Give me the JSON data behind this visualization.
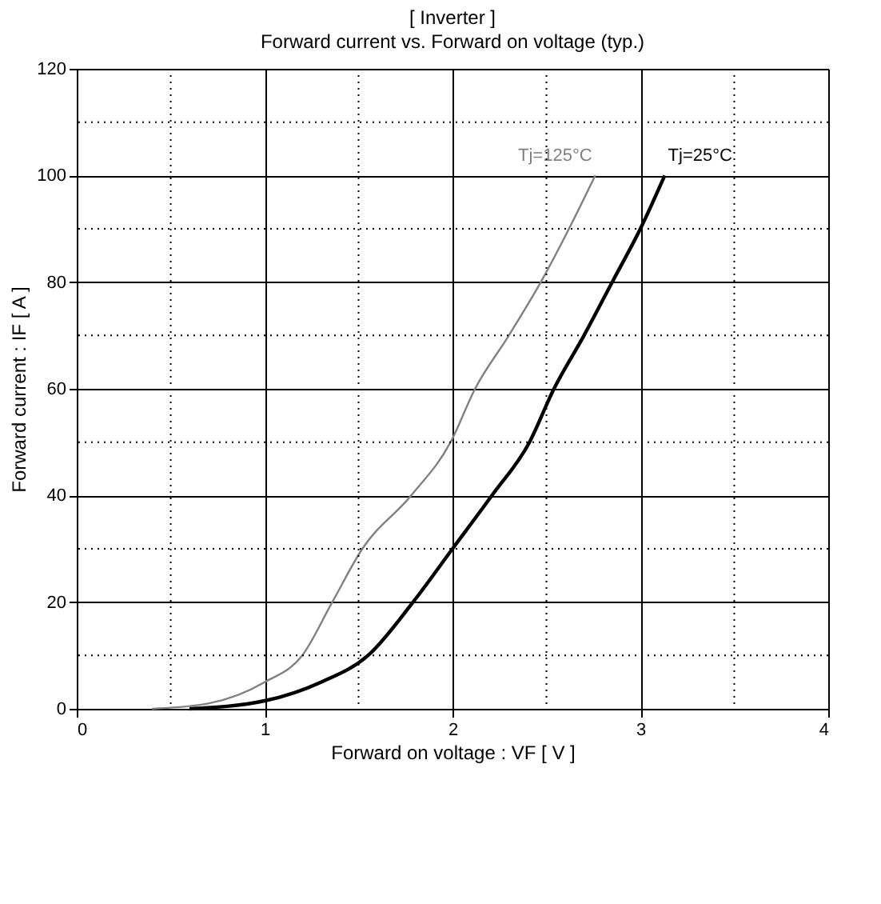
{
  "chart_data": {
    "type": "line",
    "title": "[ Inverter ]",
    "subtitle": "Forward current  vs.  Forward on voltage  (typ.)",
    "xlabel": "Forward on voltage  :  VF  [ V ]",
    "ylabel": "Forward current  :  IF  [ A ]",
    "xlim": [
      0,
      4
    ],
    "ylim": [
      0,
      120
    ],
    "xticks": [
      0,
      {
        "value": 0.5,
        "label": null
      },
      1,
      {
        "value": 1.5,
        "label": null
      },
      2,
      {
        "value": 2.5,
        "label": null
      },
      3,
      {
        "value": 3.5,
        "label": null
      },
      4
    ],
    "yticks": [
      0,
      {
        "value": 10,
        "label": null
      },
      20,
      {
        "value": 30,
        "label": null
      },
      40,
      {
        "value": 50,
        "label": null
      },
      60,
      {
        "value": 70,
        "label": null
      },
      80,
      {
        "value": 90,
        "label": null
      },
      100,
      {
        "value": 110,
        "label": null
      },
      120
    ],
    "grid": true,
    "legend": false,
    "marker": "none",
    "line_style": "solid",
    "series": [
      {
        "name": "Tj=125°C",
        "color": "#808080",
        "x": [
          0.4,
          0.7,
          1.0,
          1.2,
          1.36,
          1.52,
          1.78,
          1.99,
          2.12,
          2.3,
          2.47,
          2.62,
          2.76
        ],
        "values": [
          0,
          1,
          5,
          10,
          20,
          30,
          40,
          50,
          60,
          70,
          80,
          90,
          100
        ]
      },
      {
        "name": "Tj=25°C",
        "color": "#000000",
        "x": [
          0.6,
          1.0,
          1.3,
          1.55,
          1.79,
          2.0,
          2.21,
          2.41,
          2.54,
          2.7,
          2.85,
          3.0,
          3.13
        ],
        "values": [
          0,
          1.5,
          5,
          10,
          20,
          30,
          40,
          50,
          60,
          70,
          80,
          90,
          100
        ]
      }
    ]
  }
}
